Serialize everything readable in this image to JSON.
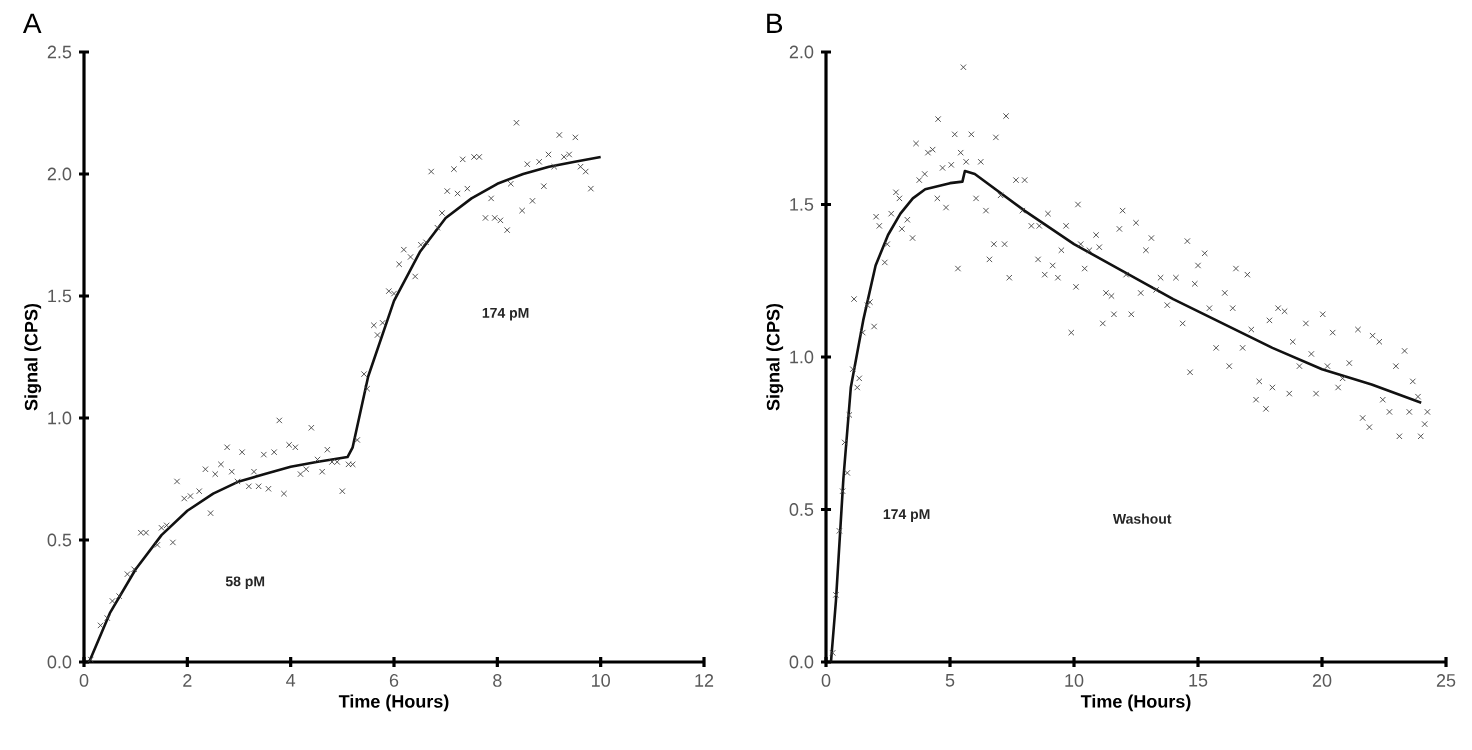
{
  "chart_data": [
    {
      "type": "scatter",
      "title": "A",
      "xlabel": "Time (Hours)",
      "ylabel": "Signal (CPS)",
      "xlim": [
        0,
        12
      ],
      "xticks": [
        0,
        2,
        4,
        6,
        8,
        10,
        12
      ],
      "ylim": [
        0,
        2.5
      ],
      "yticks": [
        {
          "value": 0,
          "label": "0.0"
        },
        {
          "value": 0.5,
          "label": "0.5"
        },
        {
          "value": 1,
          "label": "1.0"
        },
        {
          "value": 1.5,
          "label": "1.5"
        },
        {
          "value": 2,
          "label": "2.0"
        },
        {
          "value": 2.5,
          "label": "2.5"
        }
      ],
      "grid": false,
      "annotations": [
        "58 pM",
        "174 pM"
      ],
      "series": [
        {
          "marker": "cross",
          "color": "#444444",
          "x": [
            0.13,
            0.32,
            0.45,
            0.55,
            0.68,
            0.84,
            0.97,
            1.1,
            1.2,
            1.42,
            1.5,
            1.6,
            1.72,
            1.8,
            1.94,
            2.06,
            2.23,
            2.35,
            2.45,
            2.54,
            2.65,
            2.77,
            2.86,
            2.97,
            3.06,
            3.19,
            3.29,
            3.38,
            3.48,
            3.57,
            3.68,
            3.78,
            3.87,
            3.97,
            4.09,
            4.19,
            4.3,
            4.4,
            4.52,
            4.61,
            4.71,
            4.8,
            4.9,
            5.0,
            5.12,
            5.2,
            5.29,
            5.42,
            5.48,
            5.61,
            5.68,
            5.78,
            5.9,
            6.0,
            6.1,
            6.19,
            6.32,
            6.41,
            6.52,
            6.62,
            6.72,
            6.84,
            6.93,
            7.03,
            7.16,
            7.23,
            7.33,
            7.42,
            7.55,
            7.65,
            7.77,
            7.88,
            7.95,
            8.06,
            8.19,
            8.26,
            8.37,
            8.48,
            8.58,
            8.68,
            8.81,
            8.9,
            8.99,
            9.1,
            9.2,
            9.29,
            9.39,
            9.51,
            9.61,
            9.71,
            9.81
          ],
          "values": [
            0.01,
            0.15,
            0.18,
            0.25,
            0.27,
            0.36,
            0.38,
            0.53,
            0.53,
            0.48,
            0.55,
            0.56,
            0.49,
            0.74,
            0.67,
            0.68,
            0.7,
            0.79,
            0.61,
            0.77,
            0.81,
            0.88,
            0.78,
            0.74,
            0.86,
            0.72,
            0.78,
            0.72,
            0.85,
            0.71,
            0.86,
            0.99,
            0.69,
            0.89,
            0.88,
            0.77,
            0.79,
            0.96,
            0.83,
            0.78,
            0.87,
            0.82,
            0.82,
            0.7,
            0.81,
            0.81,
            0.91,
            1.18,
            1.12,
            1.38,
            1.34,
            1.39,
            1.52,
            1.51,
            1.63,
            1.69,
            1.66,
            1.58,
            1.71,
            1.72,
            2.01,
            1.78,
            1.84,
            1.93,
            2.02,
            1.92,
            2.06,
            1.94,
            2.07,
            2.07,
            1.82,
            1.9,
            1.82,
            1.81,
            1.77,
            1.96,
            2.21,
            1.85,
            2.04,
            1.89,
            2.05,
            1.95,
            2.08,
            2.03,
            2.16,
            2.07,
            2.08,
            2.15,
            2.03,
            2.01,
            1.94
          ]
        },
        {
          "type": "line",
          "marker": "none",
          "color": "#111111",
          "x": [
            0.1,
            0.5,
            1,
            1.5,
            2,
            2.5,
            3,
            3.5,
            4,
            4.5,
            5.1,
            5.2,
            5.5,
            6,
            6.5,
            7,
            7.5,
            8,
            8.5,
            9,
            9.5,
            10
          ],
          "values": [
            0,
            0.2,
            0.38,
            0.52,
            0.62,
            0.69,
            0.74,
            0.77,
            0.8,
            0.82,
            0.84,
            0.88,
            1.17,
            1.48,
            1.68,
            1.82,
            1.9,
            1.96,
            2.0,
            2.03,
            2.05,
            2.07
          ]
        }
      ]
    },
    {
      "type": "scatter",
      "title": "B",
      "xlabel": "Time (Hours)",
      "ylabel": "Signal (CPS)",
      "xlim": [
        0,
        25
      ],
      "xticks": [
        0,
        5,
        10,
        15,
        20,
        25
      ],
      "ylim": [
        0,
        2
      ],
      "yticks": [
        {
          "value": 0,
          "label": "0.0"
        },
        {
          "value": 0.5,
          "label": "0.5"
        },
        {
          "value": 1,
          "label": "1.0"
        },
        {
          "value": 1.5,
          "label": "1.5"
        },
        {
          "value": 2,
          "label": "2.0"
        }
      ],
      "grid": false,
      "annotations": [
        "174 pM",
        "Washout"
      ],
      "series": [
        {
          "marker": "cross",
          "color": "#444444",
          "x": [
            0.27,
            0.4,
            0.54,
            0.67,
            0.75,
            0.86,
            0.94,
            1.08,
            1.13,
            1.26,
            1.34,
            1.48,
            1.67,
            1.77,
            1.94,
            2.02,
            2.15,
            2.37,
            2.47,
            2.63,
            2.82,
            2.96,
            3.06,
            3.28,
            3.49,
            3.63,
            3.76,
            3.98,
            4.11,
            4.3,
            4.52,
            4.49,
            4.7,
            4.84,
            5.05,
            5.19,
            5.32,
            5.43,
            5.54,
            5.65,
            5.86,
            6.05,
            6.24,
            6.45,
            6.59,
            6.77,
            6.85,
            7.04,
            7.2,
            7.26,
            7.39,
            7.66,
            8.01,
            7.92,
            8.28,
            8.55,
            8.6,
            8.82,
            8.95,
            9.14,
            9.35,
            9.49,
            9.68,
            9.89,
            10.08,
            10.16,
            10.27,
            10.43,
            10.62,
            10.89,
            11.02,
            11.16,
            11.29,
            11.51,
            11.61,
            11.83,
            11.96,
            12.1,
            12.31,
            12.5,
            12.69,
            12.9,
            13.12,
            13.31,
            13.49,
            13.76,
            14.11,
            14.38,
            14.57,
            14.68,
            14.87,
            15.0,
            15.27,
            15.46,
            15.73,
            16.08,
            16.26,
            16.4,
            16.53,
            16.8,
            16.99,
            17.15,
            17.34,
            17.47,
            17.74,
            17.88,
            18.0,
            18.23,
            18.49,
            18.68,
            18.82,
            19.09,
            19.35,
            19.57,
            19.76,
            20.03,
            20.22,
            20.43,
            20.65,
            20.83,
            21.1,
            21.45,
            21.64,
            21.91,
            22.04,
            22.31,
            22.45,
            22.72,
            22.98,
            23.12,
            23.33,
            23.52,
            23.66,
            23.87,
            23.98,
            24.14,
            24.25
          ],
          "values": [
            0.03,
            0.22,
            0.43,
            0.56,
            0.72,
            0.62,
            0.81,
            0.96,
            1.19,
            0.9,
            0.93,
            1.08,
            1.17,
            1.18,
            1.1,
            1.46,
            1.43,
            1.31,
            1.37,
            1.47,
            1.54,
            1.52,
            1.42,
            1.45,
            1.39,
            1.7,
            1.58,
            1.6,
            1.67,
            1.68,
            1.78,
            1.52,
            1.62,
            1.49,
            1.63,
            1.73,
            1.29,
            1.67,
            1.95,
            1.64,
            1.73,
            1.52,
            1.64,
            1.48,
            1.32,
            1.37,
            1.72,
            1.53,
            1.37,
            1.79,
            1.26,
            1.58,
            1.58,
            1.48,
            1.43,
            1.32,
            1.43,
            1.27,
            1.47,
            1.3,
            1.26,
            1.35,
            1.43,
            1.08,
            1.23,
            1.5,
            1.37,
            1.29,
            1.35,
            1.4,
            1.36,
            1.11,
            1.21,
            1.2,
            1.14,
            1.42,
            1.48,
            1.27,
            1.14,
            1.44,
            1.21,
            1.35,
            1.39,
            1.22,
            1.26,
            1.17,
            1.26,
            1.11,
            1.38,
            0.95,
            1.24,
            1.3,
            1.34,
            1.16,
            1.03,
            1.21,
            0.97,
            1.16,
            1.29,
            1.03,
            1.27,
            1.09,
            0.86,
            0.92,
            0.83,
            1.12,
            0.9,
            1.16,
            1.15,
            0.88,
            1.05,
            0.97,
            1.11,
            1.01,
            0.88,
            1.14,
            0.97,
            1.08,
            0.9,
            0.93,
            0.98,
            1.09,
            0.8,
            0.77,
            1.07,
            1.05,
            0.86,
            0.82,
            0.97,
            0.74,
            1.02,
            0.82,
            0.92,
            0.87,
            0.74,
            0.78,
            0.82
          ]
        },
        {
          "type": "line",
          "marker": "none",
          "color": "#111111",
          "x": [
            0.2,
            0.4,
            0.7,
            1,
            1.5,
            2,
            2.5,
            3,
            3.5,
            4,
            4.5,
            5,
            5.5,
            5.6,
            6,
            8,
            10,
            12,
            14,
            16,
            18,
            20,
            22,
            24
          ],
          "values": [
            0,
            0.2,
            0.6,
            0.9,
            1.12,
            1.3,
            1.4,
            1.47,
            1.52,
            1.55,
            1.56,
            1.57,
            1.575,
            1.61,
            1.6,
            1.48,
            1.37,
            1.28,
            1.19,
            1.11,
            1.03,
            0.96,
            0.91,
            0.85
          ]
        }
      ]
    }
  ]
}
